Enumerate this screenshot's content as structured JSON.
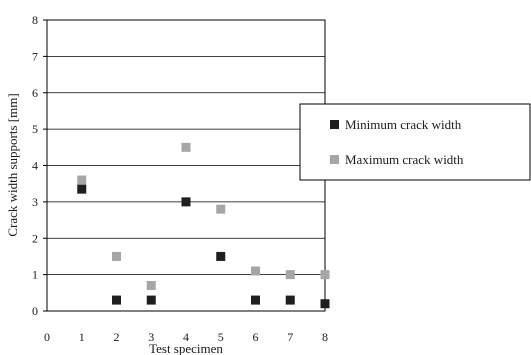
{
  "chart_data": {
    "type": "scatter",
    "title": "",
    "xlabel": "Test specimen",
    "ylabel": "Crack width supports [mm]",
    "xlim": [
      0,
      8
    ],
    "ylim": [
      0,
      8
    ],
    "xticks": [
      "0",
      "1",
      "2",
      "3",
      "4",
      "5",
      "6",
      "7",
      "8"
    ],
    "yticks": [
      "0",
      "1",
      "2",
      "3",
      "4",
      "5",
      "6",
      "7",
      "8"
    ],
    "grid": "horizontal",
    "legend_position": "right",
    "series": [
      {
        "name": "Minimum crack width",
        "color": "#1f1f1f",
        "marker": "square",
        "x": [
          1,
          2,
          3,
          4,
          5,
          6,
          7,
          8
        ],
        "y": [
          3.35,
          0.3,
          0.3,
          3.0,
          1.5,
          0.3,
          0.3,
          0.2
        ]
      },
      {
        "name": "Maximum crack width",
        "color": "#a6a6a6",
        "marker": "square",
        "x": [
          1,
          2,
          3,
          4,
          5,
          6,
          7,
          8
        ],
        "y": [
          3.6,
          1.5,
          0.7,
          4.5,
          2.8,
          1.1,
          1.0,
          1.0
        ]
      }
    ]
  }
}
